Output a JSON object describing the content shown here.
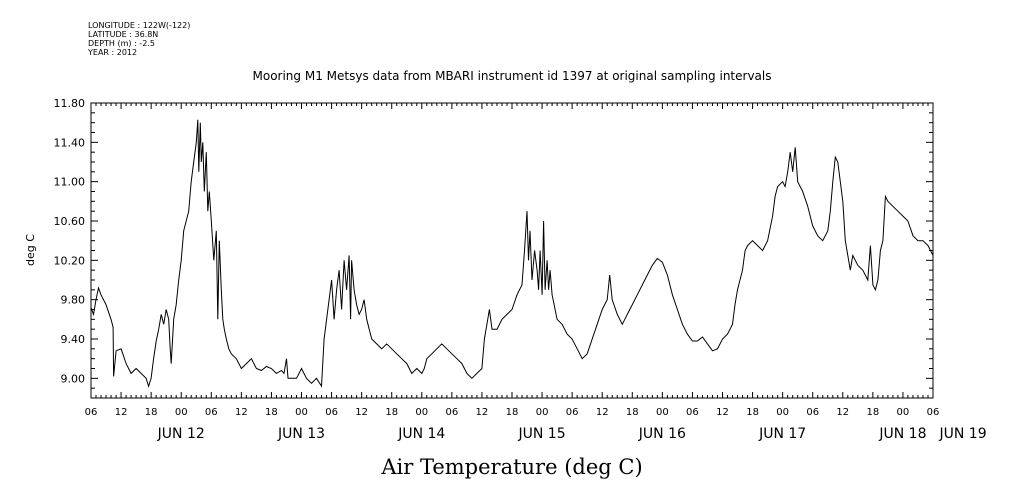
{
  "header_info": [
    "LONGITUDE : 122W(-122)",
    "LATITUDE : 36.8N",
    "DEPTH (m) : -2.5",
    "YEAR : 2012"
  ],
  "chart_data": {
    "type": "line",
    "title": "Mooring M1 Metsys data from MBARI instrument id 1397 at original sampling intervals",
    "xlabel": "Air Temperature (deg C)",
    "ylabel": "deg C",
    "x_unit": "hours since 2012-06-12 00:00",
    "xlim": [
      -18,
      150
    ],
    "ylim": [
      8.8,
      11.8
    ],
    "y_ticks": [
      "9.00",
      "9.40",
      "9.80",
      "10.20",
      "10.60",
      "11.00",
      "11.40",
      "11.80"
    ],
    "y_tick_values": [
      9.0,
      9.4,
      9.8,
      10.2,
      10.6,
      11.0,
      11.4,
      11.8
    ],
    "hour_ticks": [
      "06",
      "12",
      "18",
      "00",
      "06",
      "12",
      "18",
      "00",
      "06",
      "12",
      "18",
      "00",
      "06",
      "12",
      "18",
      "00",
      "06",
      "12",
      "18",
      "00",
      "06",
      "12",
      "18",
      "00",
      "06",
      "12",
      "18",
      "00",
      "06"
    ],
    "day_labels": [
      {
        "label": "JUN 12",
        "hour": 0
      },
      {
        "label": "JUN 13",
        "hour": 24
      },
      {
        "label": "JUN 14",
        "hour": 48
      },
      {
        "label": "JUN 15",
        "hour": 72
      },
      {
        "label": "JUN 16",
        "hour": 96
      },
      {
        "label": "JUN 17",
        "hour": 120
      },
      {
        "label": "JUN 18",
        "hour": 144
      },
      {
        "label": "JUN 19",
        "hour": 156
      }
    ],
    "series": [
      {
        "points": [
          [
            -18,
            9.72
          ],
          [
            -17.5,
            9.65
          ],
          [
            -17,
            9.8
          ],
          [
            -16.5,
            9.92
          ],
          [
            -16,
            9.85
          ],
          [
            -15,
            9.75
          ],
          [
            -14,
            9.6
          ],
          [
            -13.6,
            9.52
          ],
          [
            -13.5,
            9.02
          ],
          [
            -13,
            9.28
          ],
          [
            -12,
            9.3
          ],
          [
            -11,
            9.15
          ],
          [
            -10,
            9.05
          ],
          [
            -9,
            9.1
          ],
          [
            -8,
            9.05
          ],
          [
            -7,
            9.0
          ],
          [
            -6.5,
            8.92
          ],
          [
            -6,
            9.0
          ],
          [
            -5.5,
            9.2
          ],
          [
            -5,
            9.38
          ],
          [
            -4.5,
            9.5
          ],
          [
            -4,
            9.65
          ],
          [
            -3.5,
            9.55
          ],
          [
            -3,
            9.7
          ],
          [
            -2.5,
            9.6
          ],
          [
            -2.2,
            9.3
          ],
          [
            -2,
            9.15
          ],
          [
            -1.5,
            9.6
          ],
          [
            -1,
            9.75
          ],
          [
            -0.5,
            10.0
          ],
          [
            0,
            10.2
          ],
          [
            0.5,
            10.5
          ],
          [
            1,
            10.6
          ],
          [
            1.5,
            10.7
          ],
          [
            2,
            11.0
          ],
          [
            2.5,
            11.2
          ],
          [
            3,
            11.4
          ],
          [
            3.3,
            11.63
          ],
          [
            3.5,
            11.1
          ],
          [
            3.8,
            11.6
          ],
          [
            4,
            11.2
          ],
          [
            4.3,
            11.4
          ],
          [
            4.6,
            10.9
          ],
          [
            5,
            11.3
          ],
          [
            5.3,
            10.7
          ],
          [
            5.6,
            10.9
          ],
          [
            6,
            10.6
          ],
          [
            6.5,
            10.2
          ],
          [
            7,
            10.5
          ],
          [
            7.3,
            9.6
          ],
          [
            7.6,
            10.4
          ],
          [
            8,
            9.9
          ],
          [
            8.3,
            9.6
          ],
          [
            8.6,
            9.5
          ],
          [
            9,
            9.4
          ],
          [
            9.5,
            9.3
          ],
          [
            10,
            9.25
          ],
          [
            11,
            9.2
          ],
          [
            12,
            9.1
          ],
          [
            13,
            9.15
          ],
          [
            14,
            9.2
          ],
          [
            15,
            9.1
          ],
          [
            16,
            9.08
          ],
          [
            17,
            9.12
          ],
          [
            18,
            9.1
          ],
          [
            19,
            9.05
          ],
          [
            20,
            9.08
          ],
          [
            20.5,
            9.05
          ],
          [
            21,
            9.2
          ],
          [
            21.3,
            9.0
          ],
          [
            22,
            9.0
          ],
          [
            23,
            9.0
          ],
          [
            24,
            9.1
          ],
          [
            25,
            9.0
          ],
          [
            26,
            8.95
          ],
          [
            27,
            9.0
          ],
          [
            28,
            8.92
          ],
          [
            28.5,
            9.4
          ],
          [
            29,
            9.6
          ],
          [
            29.5,
            9.8
          ],
          [
            30,
            10.0
          ],
          [
            30.5,
            9.6
          ],
          [
            31,
            9.9
          ],
          [
            31.5,
            10.1
          ],
          [
            32,
            9.7
          ],
          [
            32.5,
            10.2
          ],
          [
            33,
            9.9
          ],
          [
            33.5,
            10.25
          ],
          [
            33.8,
            9.6
          ],
          [
            34,
            10.2
          ],
          [
            34.5,
            9.9
          ],
          [
            35,
            9.75
          ],
          [
            35.5,
            9.65
          ],
          [
            36,
            9.7
          ],
          [
            36.5,
            9.8
          ],
          [
            37,
            9.6
          ],
          [
            37.5,
            9.5
          ],
          [
            38,
            9.4
          ],
          [
            39,
            9.35
          ],
          [
            40,
            9.3
          ],
          [
            41,
            9.35
          ],
          [
            42,
            9.3
          ],
          [
            43,
            9.25
          ],
          [
            44,
            9.2
          ],
          [
            45,
            9.15
          ],
          [
            46,
            9.05
          ],
          [
            47,
            9.1
          ],
          [
            48,
            9.05
          ],
          [
            48.5,
            9.1
          ],
          [
            49,
            9.2
          ],
          [
            50,
            9.25
          ],
          [
            51,
            9.3
          ],
          [
            52,
            9.35
          ],
          [
            53,
            9.3
          ],
          [
            54,
            9.25
          ],
          [
            55,
            9.2
          ],
          [
            56,
            9.15
          ],
          [
            57,
            9.05
          ],
          [
            58,
            9.0
          ],
          [
            59,
            9.05
          ],
          [
            60,
            9.1
          ],
          [
            60.5,
            9.4
          ],
          [
            61,
            9.55
          ],
          [
            61.5,
            9.7
          ],
          [
            62,
            9.5
          ],
          [
            63,
            9.5
          ],
          [
            64,
            9.6
          ],
          [
            65,
            9.65
          ],
          [
            66,
            9.7
          ],
          [
            67,
            9.85
          ],
          [
            68,
            9.95
          ],
          [
            68.5,
            10.3
          ],
          [
            69,
            10.7
          ],
          [
            69.3,
            10.2
          ],
          [
            69.6,
            10.5
          ],
          [
            70,
            10.0
          ],
          [
            70.5,
            10.3
          ],
          [
            71,
            10.1
          ],
          [
            71.3,
            9.9
          ],
          [
            71.6,
            10.3
          ],
          [
            72,
            9.85
          ],
          [
            72.3,
            10.6
          ],
          [
            72.6,
            9.9
          ],
          [
            73,
            10.2
          ],
          [
            73.3,
            9.9
          ],
          [
            73.6,
            10.1
          ],
          [
            74,
            9.85
          ],
          [
            75,
            9.6
          ],
          [
            76,
            9.55
          ],
          [
            77,
            9.45
          ],
          [
            78,
            9.4
          ],
          [
            79,
            9.3
          ],
          [
            80,
            9.2
          ],
          [
            81,
            9.25
          ],
          [
            82,
            9.4
          ],
          [
            83,
            9.55
          ],
          [
            84,
            9.7
          ],
          [
            85,
            9.8
          ],
          [
            85.5,
            10.05
          ],
          [
            86,
            9.8
          ],
          [
            87,
            9.65
          ],
          [
            88,
            9.55
          ],
          [
            88.5,
            9.6
          ],
          [
            89,
            9.65
          ],
          [
            90,
            9.75
          ],
          [
            91,
            9.85
          ],
          [
            92,
            9.95
          ],
          [
            93,
            10.05
          ],
          [
            94,
            10.15
          ],
          [
            95,
            10.22
          ],
          [
            96,
            10.18
          ],
          [
            97,
            10.05
          ],
          [
            98,
            9.85
          ],
          [
            99,
            9.7
          ],
          [
            100,
            9.55
          ],
          [
            101,
            9.45
          ],
          [
            102,
            9.38
          ],
          [
            103,
            9.38
          ],
          [
            104,
            9.42
          ],
          [
            105,
            9.35
          ],
          [
            106,
            9.28
          ],
          [
            107,
            9.3
          ],
          [
            108,
            9.4
          ],
          [
            109,
            9.45
          ],
          [
            110,
            9.55
          ],
          [
            110.5,
            9.75
          ],
          [
            111,
            9.9
          ],
          [
            112,
            10.1
          ],
          [
            112.5,
            10.3
          ],
          [
            113,
            10.35
          ],
          [
            114,
            10.4
          ],
          [
            115,
            10.35
          ],
          [
            116,
            10.3
          ],
          [
            117,
            10.4
          ],
          [
            118,
            10.65
          ],
          [
            118.5,
            10.85
          ],
          [
            119,
            10.95
          ],
          [
            120,
            11.0
          ],
          [
            120.5,
            10.95
          ],
          [
            121,
            11.1
          ],
          [
            121.5,
            11.3
          ],
          [
            122,
            11.1
          ],
          [
            122.5,
            11.35
          ],
          [
            123,
            11.0
          ],
          [
            124,
            10.9
          ],
          [
            125,
            10.75
          ],
          [
            126,
            10.55
          ],
          [
            127,
            10.45
          ],
          [
            128,
            10.4
          ],
          [
            129,
            10.5
          ],
          [
            129.5,
            10.7
          ],
          [
            130,
            11.0
          ],
          [
            130.5,
            11.25
          ],
          [
            131,
            11.2
          ],
          [
            132,
            10.8
          ],
          [
            132.5,
            10.4
          ],
          [
            133,
            10.25
          ],
          [
            133.5,
            10.1
          ],
          [
            134,
            10.25
          ],
          [
            135,
            10.15
          ],
          [
            136,
            10.1
          ],
          [
            137,
            10.0
          ],
          [
            137.5,
            10.35
          ],
          [
            138,
            9.95
          ],
          [
            138.5,
            9.9
          ],
          [
            139,
            10.0
          ],
          [
            139.5,
            10.3
          ],
          [
            140,
            10.4
          ],
          [
            140.5,
            10.85
          ],
          [
            141,
            10.8
          ],
          [
            142,
            10.75
          ],
          [
            143,
            10.7
          ],
          [
            144,
            10.65
          ],
          [
            145,
            10.6
          ],
          [
            146,
            10.45
          ],
          [
            147,
            10.4
          ],
          [
            148,
            10.4
          ],
          [
            149,
            10.35
          ],
          [
            150,
            10.25
          ]
        ]
      }
    ],
    "grid": false,
    "legend": "none"
  }
}
